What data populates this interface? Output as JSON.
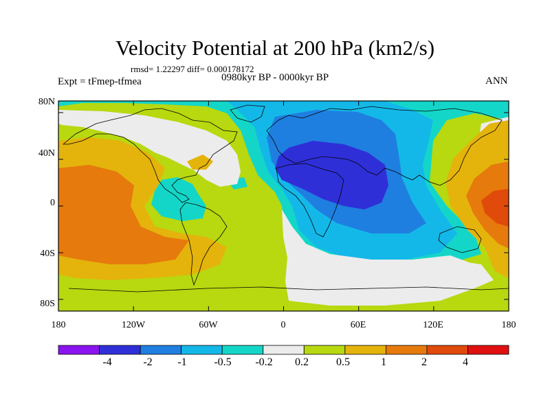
{
  "figure": {
    "title": "Velocity Potential at 200 hPa (km2/s)",
    "stats": "rmsd= 1.22297 diff= 0.000178172",
    "experiment": "Expt = tFmep-tfmea",
    "period": "0980kyr BP - 0000kyr BP",
    "season": "ANN"
  },
  "axes": {
    "lat_labels": [
      "80N",
      "40N",
      "0",
      "40S",
      "80S"
    ],
    "lon_labels": [
      "180",
      "120W",
      "60W",
      "0",
      "60E",
      "120E",
      "180"
    ]
  },
  "colorbar": {
    "labels": [
      "-4",
      "-2",
      "-1",
      "-0.5",
      "-0.2",
      "0.2",
      "0.5",
      "1",
      "2",
      "4"
    ],
    "colors": [
      "#8a14f0",
      "#2f2fd8",
      "#1f7fe0",
      "#14b8e8",
      "#14d6c8",
      "#ececec",
      "#b8d810",
      "#e4b40c",
      "#e67a0c",
      "#e04a0a",
      "#e01010"
    ]
  },
  "chart_data": {
    "type": "filled-contour-map",
    "title": "Velocity Potential at 200 hPa (km2/s)",
    "units": "km2/s",
    "projection": "cylindrical equidistant",
    "lon_range": [
      -180,
      180
    ],
    "lat_range": [
      -90,
      90
    ],
    "contour_levels": [
      -4,
      -2,
      -1,
      -0.5,
      -0.2,
      0.2,
      0.5,
      1,
      2,
      4
    ],
    "features": [
      {
        "name": "negative center",
        "region": "Africa / Middle East",
        "approx_lon": 40,
        "approx_lat": 20,
        "value_range": [
          -4,
          -2
        ]
      },
      {
        "name": "positive center",
        "region": "Central Pacific (west of date line)",
        "approx_lon": 160,
        "approx_lat": 5,
        "value_range": [
          2,
          4
        ]
      },
      {
        "name": "positive lobe",
        "region": "Eastern Pacific",
        "approx_lon": -150,
        "approx_lat": -10,
        "value_range": [
          1,
          2
        ]
      }
    ]
  }
}
